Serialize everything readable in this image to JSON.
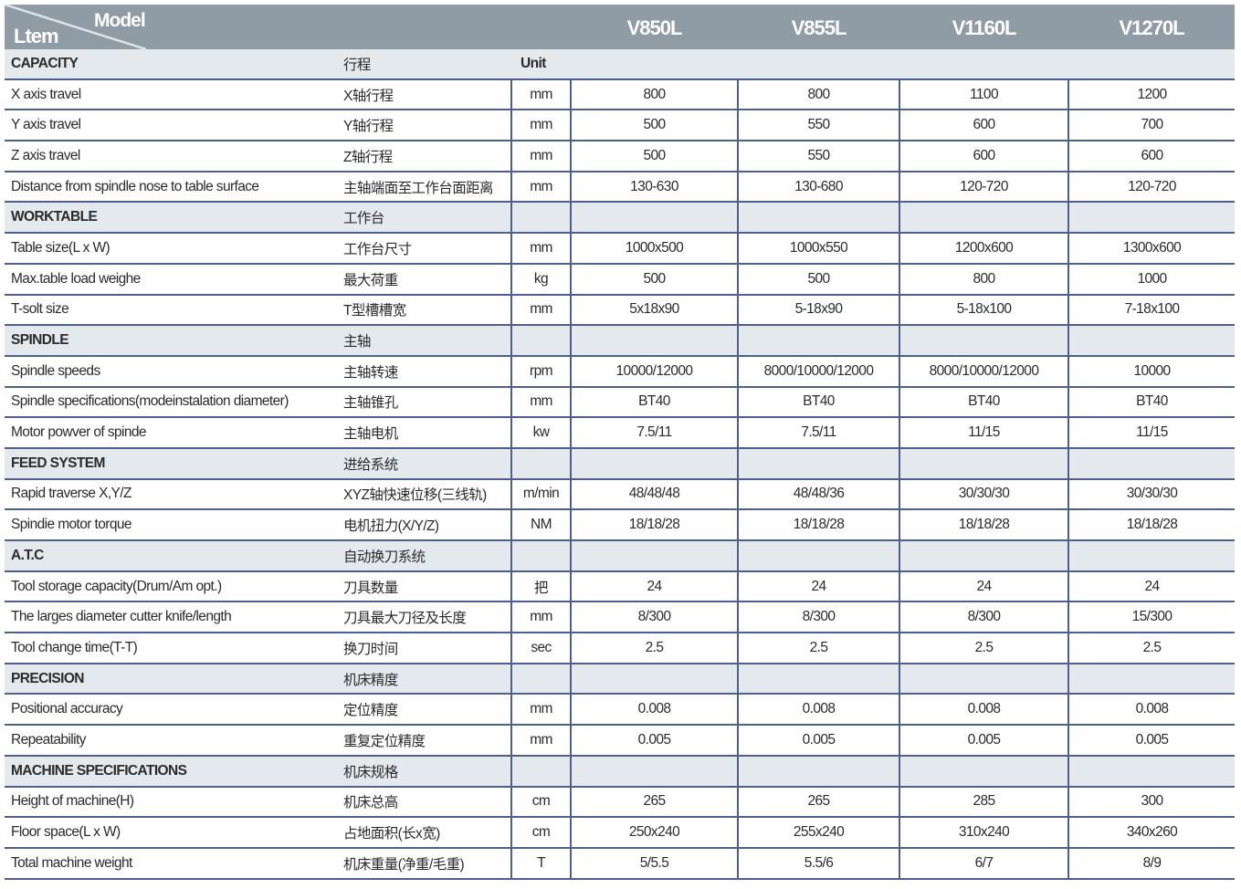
{
  "header": {
    "item_label": "Ltem",
    "model_label": "Model",
    "models": [
      "V850L",
      "V855L",
      "V1160L",
      "V1270L"
    ],
    "bg_color": "#8f9ba5"
  },
  "colors": {
    "section_bg": "#e4e9ee",
    "grid_line": "#4d5f8c"
  },
  "rows": [
    {
      "section": true,
      "en": "CAPACITY",
      "cn": "行程",
      "unit": "Unit",
      "values": []
    },
    {
      "en": "X axis travel",
      "cn": "X轴行程",
      "unit": "mm",
      "values": [
        "800",
        "800",
        "1100",
        "1200"
      ]
    },
    {
      "en": "Y axis travel",
      "cn": "Y轴行程",
      "unit": "mm",
      "values": [
        "500",
        "550",
        "600",
        "700"
      ]
    },
    {
      "en": "Z axis travel",
      "cn": "Z轴行程",
      "unit": "mm",
      "values": [
        "500",
        "550",
        "600",
        "600"
      ]
    },
    {
      "en": "Distance from spindle nose to table surface",
      "cn": "主轴端面至工作台面距离",
      "unit": "mm",
      "values": [
        "130-630",
        "130-680",
        "120-720",
        "120-720"
      ]
    },
    {
      "section": true,
      "en": "WORKTABLE",
      "cn": "工作台",
      "unit": "",
      "values": []
    },
    {
      "en": "Table size(L x W)",
      "cn": "工作台尺寸",
      "unit": "mm",
      "values": [
        "1000x500",
        "1000x550",
        "1200x600",
        "1300x600"
      ]
    },
    {
      "en": "Max.table load weighe",
      "cn": "最大荷重",
      "unit": "kg",
      "values": [
        "500",
        "500",
        "800",
        "1000"
      ]
    },
    {
      "en": "T-solt size",
      "cn": "T型槽槽宽",
      "unit": "mm",
      "values": [
        "5x18x90",
        "5-18x90",
        "5-18x100",
        "7-18x100"
      ]
    },
    {
      "section": true,
      "en": "SPINDLE",
      "cn": "主轴",
      "unit": "",
      "values": []
    },
    {
      "en": "Spindle speeds",
      "cn": "主轴转速",
      "unit": "rpm",
      "values": [
        "10000/12000",
        "8000/10000/12000",
        "8000/10000/12000",
        "10000"
      ]
    },
    {
      "en": "Spindle specifications(modeinstalation diameter)",
      "cn": "主轴锥孔",
      "unit": "mm",
      "values": [
        "BT40",
        "BT40",
        "BT40",
        "BT40"
      ]
    },
    {
      "en": "Motor powver of spinde",
      "cn": "主轴电机",
      "unit": "kw",
      "values": [
        "7.5/11",
        "7.5/11",
        "11/15",
        "11/15"
      ]
    },
    {
      "section": true,
      "en": "FEED SYSTEM",
      "cn": "进给系统",
      "unit": "",
      "values": []
    },
    {
      "en": "Rapid traverse X,Y/Z",
      "cn": "XYZ轴快速位移(三线轨)",
      "unit": "m/min",
      "values": [
        "48/48/48",
        "48/48/36",
        "30/30/30",
        "30/30/30"
      ]
    },
    {
      "en": "Spindie motor torque",
      "cn": "电机扭力(X/Y/Z)",
      "unit": "NM",
      "values": [
        "18/18/28",
        "18/18/28",
        "18/18/28",
        "18/18/28"
      ]
    },
    {
      "section": true,
      "en": "A.T.C",
      "cn": "自动换刀系统",
      "unit": "",
      "values": []
    },
    {
      "en": "Tool storage capacity(Drum/Am opt.)",
      "cn": "刀具数量",
      "unit": "把",
      "values": [
        "24",
        "24",
        "24",
        "24"
      ]
    },
    {
      "en": "The larges diameter cutter knife/length",
      "cn": "刀具最大刀径及长度",
      "unit": "mm",
      "values": [
        "8/300",
        "8/300",
        "8/300",
        "15/300"
      ]
    },
    {
      "en": "Tool change time(T-T)",
      "cn": "换刀时间",
      "unit": "sec",
      "values": [
        "2.5",
        "2.5",
        "2.5",
        "2.5"
      ]
    },
    {
      "section": true,
      "en": "PRECISION",
      "cn": "机床精度",
      "unit": "",
      "values": []
    },
    {
      "en": "Positional accuracy",
      "cn": "定位精度",
      "unit": "mm",
      "values": [
        "0.008",
        "0.008",
        "0.008",
        "0.008"
      ]
    },
    {
      "en": "Repeatability",
      "cn": "重复定位精度",
      "unit": "mm",
      "values": [
        "0.005",
        "0.005",
        "0.005",
        "0.005"
      ]
    },
    {
      "section": true,
      "en": "MACHINE SPECIFICATIONS",
      "cn": "机床规格",
      "unit": "",
      "values": []
    },
    {
      "en": "Height of machine(H)",
      "cn": "机床总高",
      "unit": "cm",
      "values": [
        "265",
        "265",
        "285",
        "300"
      ]
    },
    {
      "en": "Floor space(L x W)",
      "cn": "占地面积(长x宽)",
      "unit": "cm",
      "values": [
        "250x240",
        "255x240",
        "310x240",
        "340x260"
      ]
    },
    {
      "en": "Total machine weight",
      "cn": "机床重量(净重/毛重)",
      "unit": "T",
      "values": [
        "5/5.5",
        "5.5/6",
        "6/7",
        "8/9"
      ]
    }
  ]
}
